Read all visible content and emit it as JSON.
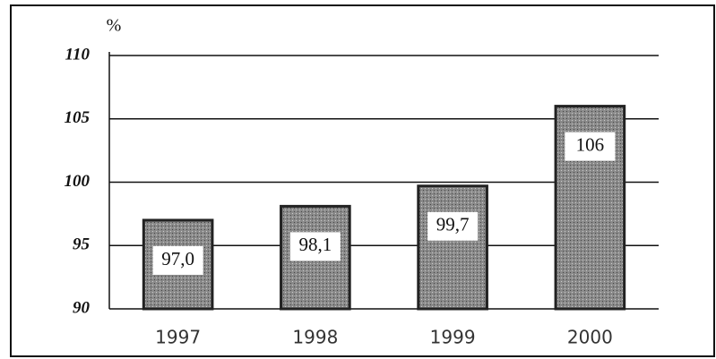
{
  "chart_data": {
    "type": "bar",
    "y_label": "%",
    "categories": [
      "1997",
      "1998",
      "1999",
      "2000"
    ],
    "values": [
      97.0,
      98.1,
      99.7,
      106
    ],
    "value_labels": [
      "97,0",
      "98,1",
      "99,7",
      "106"
    ],
    "color": "#8a8a8a",
    "ylim": [
      90,
      110
    ],
    "yticks": [
      90,
      95,
      100,
      105,
      110
    ],
    "grid": true
  }
}
